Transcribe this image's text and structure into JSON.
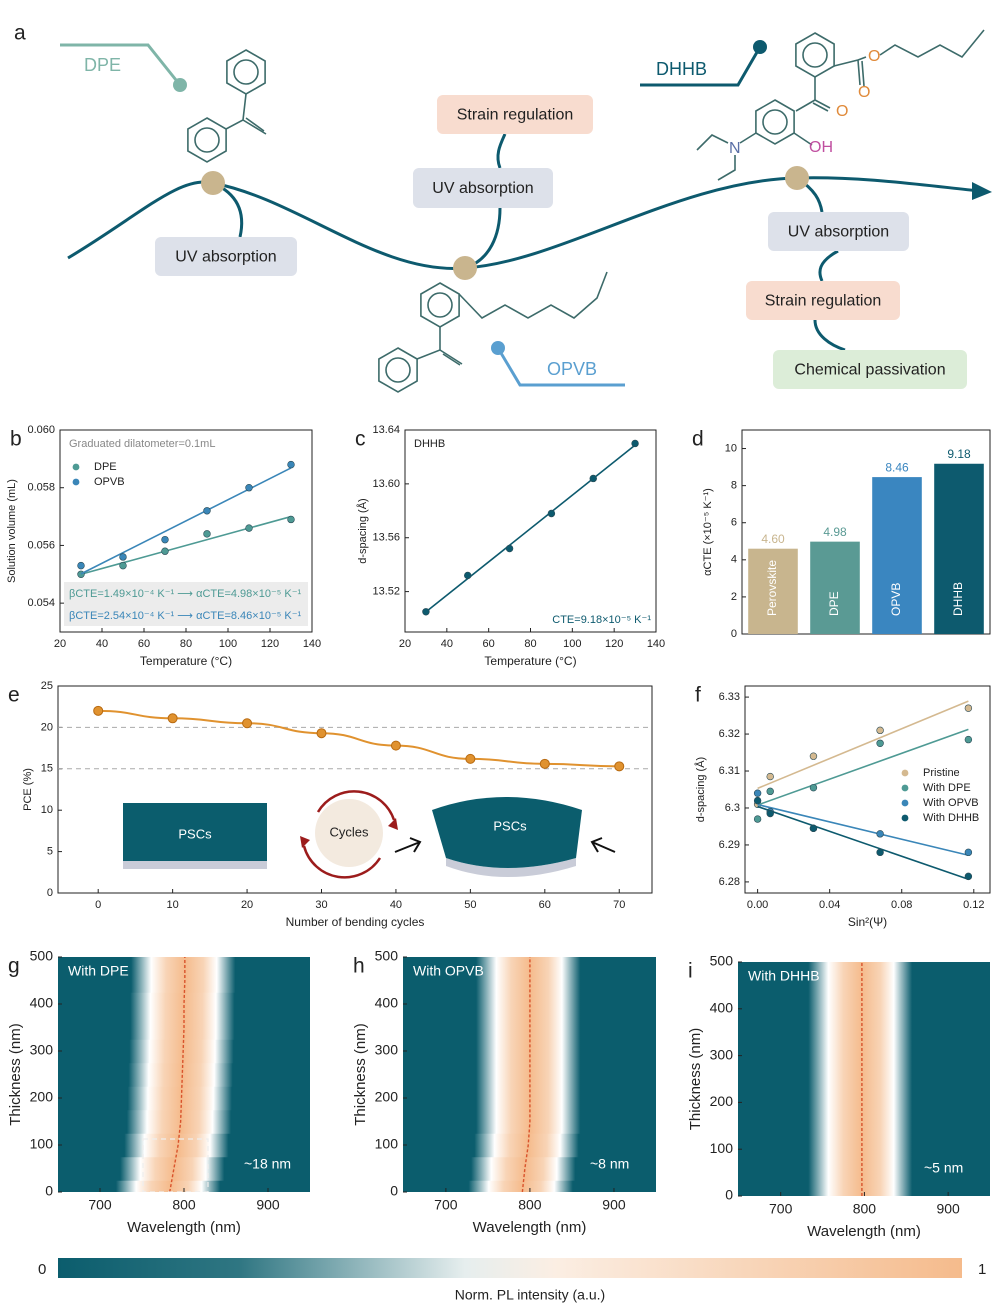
{
  "diagram": {
    "panel": "a",
    "tags": [
      "DPE",
      "DHHB",
      "OPVB"
    ],
    "boxes": [
      "Strain regulation",
      "UV absorption",
      "UV absorption",
      "UV absorption",
      "Strain regulation",
      "Chemical passivation"
    ],
    "atoms": [
      "O",
      "O",
      "O",
      "N",
      "OH"
    ]
  },
  "chart_data": [
    {
      "type": "scatter",
      "panel": "b",
      "annotation": "Graduated dilatometer=0.1mL",
      "fit": true,
      "legend": "upper left",
      "xlabel": "Temperature (°C)",
      "ylabel": "Solution volume (mL)",
      "x": [
        30,
        50,
        70,
        90,
        110,
        130
      ],
      "series": [
        {
          "name": "DPE",
          "color": "#4e9a94",
          "values": [
            0.055,
            0.0553,
            0.0558,
            0.0564,
            0.0566,
            0.0569
          ],
          "note": "βCTE=1.49×10⁻⁴ K⁻¹ ⟶ αCTE=4.98×10⁻⁵ K⁻¹"
        },
        {
          "name": "OPVB",
          "color": "#3a86b8",
          "values": [
            0.0553,
            0.0556,
            0.0562,
            0.0572,
            0.058,
            0.0588
          ],
          "note": "βCTE=2.54×10⁻⁴ K⁻¹ ⟶ αCTE=8.46×10⁻⁵ K⁻¹"
        }
      ],
      "xlim": [
        20,
        140
      ],
      "xticks": [
        20,
        40,
        60,
        80,
        100,
        120,
        140
      ],
      "ylim": [
        0.053,
        0.06
      ],
      "yticks": [
        {
          "value": 0.054,
          "label": "0.054"
        },
        0.056,
        0.058,
        {
          "value": 0.06,
          "label": "0.060"
        }
      ]
    },
    {
      "type": "scatter",
      "panel": "c",
      "annotation": "DHHB",
      "fit": true,
      "xlabel": "Temperature (°C)",
      "ylabel": "d-spacing (Å)",
      "x": [
        30,
        50,
        70,
        90,
        110,
        130
      ],
      "series": [
        {
          "color": "#0d5a6e",
          "values": [
            13.505,
            13.532,
            13.552,
            13.578,
            13.604,
            13.63
          ],
          "note": "CTE=9.18×10⁻⁵ K⁻¹"
        }
      ],
      "xlim": [
        20,
        140
      ],
      "xticks": [
        20,
        40,
        60,
        80,
        100,
        120,
        140
      ],
      "ylim": [
        13.49,
        13.64
      ],
      "yticks": [
        13.52,
        13.56,
        {
          "value": 13.6,
          "label": "13.60"
        },
        13.64
      ]
    },
    {
      "type": "bar",
      "panel": "d",
      "ylabel": "αCTE (×10⁻⁵ K⁻¹)",
      "categories": [
        "Perovskite",
        "DPE",
        "OPVB",
        "DHHB"
      ],
      "values": [
        4.6,
        4.98,
        8.46,
        9.18
      ],
      "value_labels": [
        "4.60",
        "4.98",
        "8.46",
        "9.18"
      ],
      "colors": [
        "#c8b58e",
        "#5a9a94",
        "#3a86c0",
        "#0d5a6e"
      ],
      "ylim": [
        0,
        11
      ],
      "yticks": [
        0,
        2,
        4,
        6,
        8,
        10
      ]
    },
    {
      "type": "line",
      "panel": "e",
      "xlabel": "Number of bending cycles",
      "ylabel": "PCE (%)",
      "color": "#e0922f",
      "x": [
        0,
        10,
        20,
        30,
        40,
        50,
        60,
        70
      ],
      "values": [
        22.0,
        21.1,
        20.5,
        19.3,
        17.8,
        16.2,
        15.6,
        15.3
      ],
      "ref_lines": [
        20,
        15
      ],
      "inset_labels": [
        "PSCs",
        "Cycles",
        "PSCs"
      ],
      "xlim": [
        -5.4,
        74.4
      ],
      "xticks": [
        0,
        10,
        20,
        30,
        40,
        50,
        60,
        70
      ],
      "ylim": [
        0,
        25
      ],
      "yticks": [
        0,
        5,
        10,
        15,
        20,
        25
      ]
    },
    {
      "type": "scatter",
      "panel": "f",
      "fit": true,
      "legend": "center right",
      "xlabel": "Sin²(Ψ)",
      "ylabel": "d-spacing (Å)",
      "x": [
        0,
        0.007,
        0.031,
        0.068,
        0.117
      ],
      "series": [
        {
          "name": "Pristine",
          "color": "#d4b990",
          "values": [
            6.301,
            6.3085,
            6.314,
            6.321,
            6.327
          ]
        },
        {
          "name": "With DPE",
          "color": "#4e9a94",
          "values": [
            6.297,
            6.3045,
            6.3055,
            6.3175,
            6.3185
          ]
        },
        {
          "name": "With OPVB",
          "color": "#3a86b8",
          "values": [
            6.304,
            6.299,
            6.2945,
            6.293,
            6.288
          ]
        },
        {
          "name": "With DHHB",
          "color": "#0d5a6e",
          "values": [
            6.302,
            6.2985,
            6.2945,
            6.288,
            6.2815
          ]
        }
      ],
      "xlim": [
        -0.007,
        0.129
      ],
      "xticks": [
        {
          "value": 0,
          "label": "0.00"
        },
        0.04,
        0.08,
        0.12
      ],
      "ylim": [
        6.277,
        6.333
      ],
      "yticks": [
        6.28,
        6.29,
        6.3,
        6.31,
        6.32,
        6.33
      ]
    },
    {
      "type": "heatmap",
      "panel": "g",
      "label": "With DPE",
      "note": "~18 nm",
      "xlabel": "Wavelength (nm)",
      "ylabel": "Thickness (nm)",
      "thickness": [
        0,
        50,
        100,
        150,
        200,
        250,
        300,
        350,
        400,
        450,
        500
      ],
      "peak_wavelength": [
        783,
        788,
        793,
        796,
        797,
        798,
        799,
        800,
        800,
        801,
        801
      ],
      "xlim": [
        650,
        950
      ],
      "xticks": [
        700,
        800,
        900
      ],
      "ylim": [
        0,
        500
      ],
      "yticks": [
        0,
        100,
        200,
        300,
        400,
        500
      ]
    },
    {
      "type": "heatmap",
      "panel": "h",
      "label": "With OPVB",
      "note": "~8 nm",
      "xlabel": "Wavelength (nm)",
      "ylabel": "Thickness (nm)",
      "thickness": [
        0,
        50,
        100,
        150,
        200,
        250,
        300,
        350,
        400,
        450,
        500
      ],
      "peak_wavelength": [
        791,
        794,
        798,
        800,
        800,
        800,
        800,
        800,
        800,
        800,
        800
      ],
      "xlim": [
        649,
        950
      ],
      "xticks": [
        700,
        800,
        900
      ],
      "ylim": [
        0,
        500
      ],
      "yticks": [
        0,
        100,
        200,
        300,
        400,
        500
      ]
    },
    {
      "type": "heatmap",
      "panel": "i",
      "label": "With DHHB",
      "note": "~5 nm",
      "xlabel": "Wavelength (nm)",
      "ylabel": "Thickness (nm)",
      "thickness": [
        0,
        50,
        100,
        150,
        200,
        250,
        300,
        350,
        400,
        450,
        500
      ],
      "peak_wavelength": [
        797,
        797,
        797,
        797,
        797,
        797,
        797,
        797,
        797,
        797,
        797
      ],
      "xlim": [
        649,
        950
      ],
      "xticks": [
        700,
        800,
        900
      ],
      "ylim": [
        0,
        500
      ],
      "yticks": [
        0,
        100,
        200,
        300,
        400,
        500
      ]
    }
  ],
  "colorbar": {
    "range": [
      0,
      1
    ],
    "label": "Norm. PL intensity (a.u.)"
  }
}
